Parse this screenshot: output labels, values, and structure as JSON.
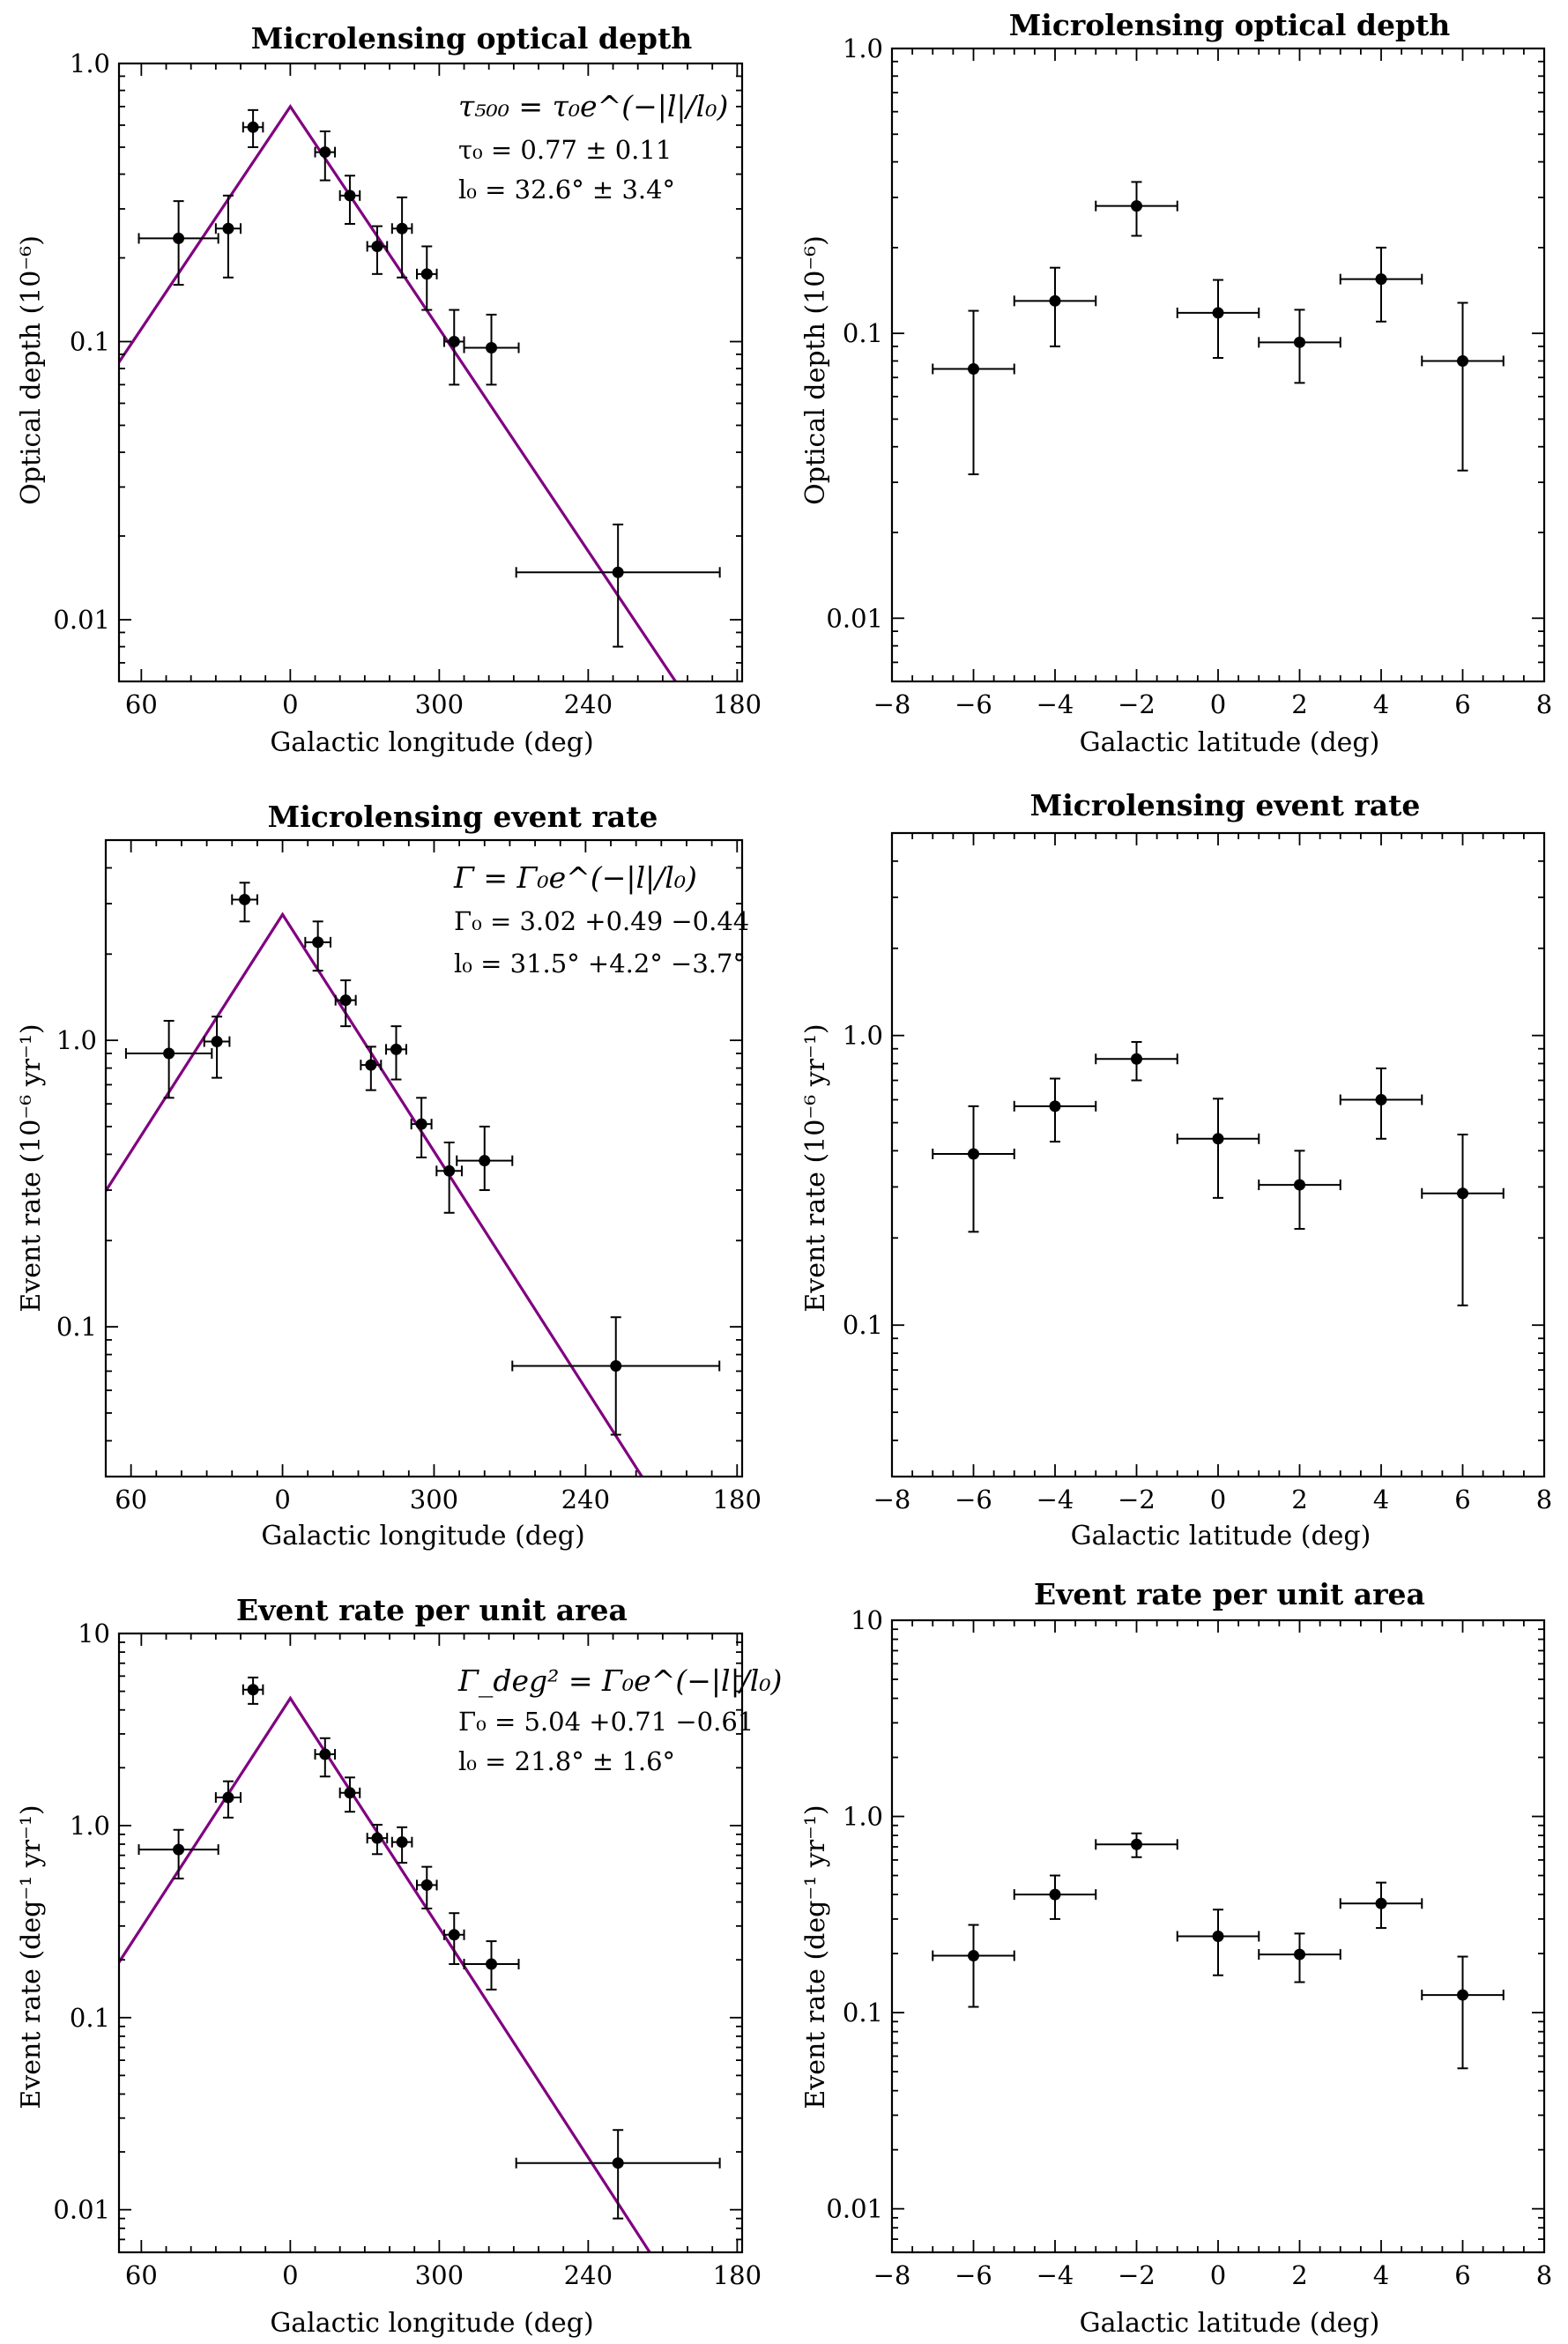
{
  "colors": {
    "fit_line": "#800080",
    "points": "#000000"
  },
  "chart_data": [
    {
      "id": "tau-lon",
      "type": "scatter",
      "title": "Microlensing optical depth",
      "xlabel": "Galactic longitude (deg)",
      "ylabel": "Optical depth (10⁻⁶)",
      "xscale": "linear",
      "yscale": "log",
      "xlim_offset_from_center_deg": [
        -69,
        182
      ],
      "ylim": [
        0.006,
        1.0
      ],
      "xtick_labels": [
        "60",
        "0",
        "300",
        "240",
        "180"
      ],
      "ytick_labels": [
        "0.01",
        "0.1",
        "1.0"
      ],
      "ytick_values": [
        0.01,
        0.1,
        1.0
      ],
      "points": [
        {
          "l_offset": -45,
          "xerr": 16,
          "y": 0.235,
          "yerr_lo": 0.075,
          "yerr_hi": 0.085
        },
        {
          "l_offset": -25,
          "xerr": 5,
          "y": 0.255,
          "yerr_lo": 0.085,
          "yerr_hi": 0.08
        },
        {
          "l_offset": -15,
          "xerr": 4,
          "y": 0.59,
          "yerr_lo": 0.09,
          "yerr_hi": 0.09
        },
        {
          "l_offset": 14,
          "xerr": 4,
          "y": 0.48,
          "yerr_lo": 0.1,
          "yerr_hi": 0.09
        },
        {
          "l_offset": 24,
          "xerr": 4,
          "y": 0.335,
          "yerr_lo": 0.07,
          "yerr_hi": 0.06
        },
        {
          "l_offset": 35,
          "xerr": 4,
          "y": 0.22,
          "yerr_lo": 0.045,
          "yerr_hi": 0.04
        },
        {
          "l_offset": 45,
          "xerr": 4,
          "y": 0.255,
          "yerr_lo": 0.085,
          "yerr_hi": 0.075
        },
        {
          "l_offset": 55,
          "xerr": 4,
          "y": 0.175,
          "yerr_lo": 0.045,
          "yerr_hi": 0.045
        },
        {
          "l_offset": 66,
          "xerr": 4,
          "y": 0.1,
          "yerr_lo": 0.03,
          "yerr_hi": 0.03
        },
        {
          "l_offset": 81,
          "xerr": 11,
          "y": 0.095,
          "yerr_lo": 0.025,
          "yerr_hi": 0.03
        },
        {
          "l_offset": 132,
          "xerr": 41,
          "y": 0.0148,
          "yerr_lo": 0.0068,
          "yerr_hi": 0.0072
        }
      ],
      "fit": {
        "peak": 0.7,
        "scale_length_deg": 32.6,
        "x_range": [
          -69,
          182
        ]
      },
      "annotation": {
        "line1": "τ₅₀₀ = τ₀e^(−|l|/l₀)",
        "line2": "τ₀ = 0.77 ± 0.11",
        "line3": "l₀ = 32.6° ± 3.4°"
      }
    },
    {
      "id": "tau-lat",
      "type": "scatter",
      "title": "Microlensing optical depth",
      "xlabel": "Galactic latitude (deg)",
      "ylabel": "Optical depth (10⁻⁶)",
      "xscale": "linear",
      "yscale": "log",
      "xlim": [
        -8,
        8
      ],
      "ylim": [
        0.006,
        1.0
      ],
      "xtick_labels": [
        "−8",
        "−6",
        "−4",
        "−2",
        "0",
        "2",
        "4",
        "6",
        "8"
      ],
      "xtick_values": [
        -8,
        -6,
        -4,
        -2,
        0,
        2,
        4,
        6,
        8
      ],
      "ytick_labels": [
        "0.01",
        "0.1",
        "1.0"
      ],
      "ytick_values": [
        0.01,
        0.1,
        1.0
      ],
      "points": [
        {
          "x": -6,
          "xerr": 1,
          "y": 0.075,
          "yerr_lo": 0.043,
          "yerr_hi": 0.045
        },
        {
          "x": -4,
          "xerr": 1,
          "y": 0.13,
          "yerr_lo": 0.04,
          "yerr_hi": 0.04
        },
        {
          "x": -2,
          "xerr": 1,
          "y": 0.28,
          "yerr_lo": 0.06,
          "yerr_hi": 0.06
        },
        {
          "x": 0,
          "xerr": 1,
          "y": 0.118,
          "yerr_lo": 0.036,
          "yerr_hi": 0.036
        },
        {
          "x": 2,
          "xerr": 1,
          "y": 0.093,
          "yerr_lo": 0.026,
          "yerr_hi": 0.028
        },
        {
          "x": 4,
          "xerr": 1,
          "y": 0.155,
          "yerr_lo": 0.045,
          "yerr_hi": 0.045
        },
        {
          "x": 6,
          "xerr": 1,
          "y": 0.08,
          "yerr_lo": 0.047,
          "yerr_hi": 0.048
        }
      ]
    },
    {
      "id": "rate-lon",
      "type": "scatter",
      "title": "Microlensing event rate",
      "xlabel": "Galactic longitude (deg)",
      "ylabel": "Event rate (10⁻⁶ yr⁻¹)",
      "xscale": "linear",
      "yscale": "log",
      "xlim_offset_from_center_deg": [
        -70,
        182
      ],
      "ylim": [
        0.03,
        5.0
      ],
      "xtick_labels": [
        "60",
        "0",
        "300",
        "240",
        "180"
      ],
      "ytick_labels": [
        "0.1",
        "1.0"
      ],
      "ytick_values": [
        0.1,
        1.0
      ],
      "points": [
        {
          "l_offset": -45,
          "xerr": 17,
          "y": 0.9,
          "yerr_lo": 0.27,
          "yerr_hi": 0.27
        },
        {
          "l_offset": -26,
          "xerr": 5,
          "y": 0.99,
          "yerr_lo": 0.25,
          "yerr_hi": 0.22
        },
        {
          "l_offset": -15,
          "xerr": 5,
          "y": 3.1,
          "yerr_lo": 0.5,
          "yerr_hi": 0.45
        },
        {
          "l_offset": 14,
          "xerr": 5,
          "y": 2.2,
          "yerr_lo": 0.45,
          "yerr_hi": 0.4
        },
        {
          "l_offset": 25,
          "xerr": 4,
          "y": 1.38,
          "yerr_lo": 0.26,
          "yerr_hi": 0.24
        },
        {
          "l_offset": 35,
          "xerr": 4,
          "y": 0.82,
          "yerr_lo": 0.15,
          "yerr_hi": 0.13
        },
        {
          "l_offset": 45,
          "xerr": 4,
          "y": 0.93,
          "yerr_lo": 0.2,
          "yerr_hi": 0.19
        },
        {
          "l_offset": 55,
          "xerr": 4,
          "y": 0.51,
          "yerr_lo": 0.12,
          "yerr_hi": 0.12
        },
        {
          "l_offset": 66,
          "xerr": 5,
          "y": 0.35,
          "yerr_lo": 0.1,
          "yerr_hi": 0.09
        },
        {
          "l_offset": 80,
          "xerr": 11,
          "y": 0.38,
          "yerr_lo": 0.08,
          "yerr_hi": 0.12
        },
        {
          "l_offset": 132,
          "xerr": 41,
          "y": 0.073,
          "yerr_lo": 0.031,
          "yerr_hi": 0.035
        }
      ],
      "fit": {
        "peak": 2.75,
        "scale_length_deg": 31.5,
        "x_range": [
          -70,
          182
        ]
      },
      "annotation": {
        "line1": "Γ = Γ₀e^(−|l|/l₀)",
        "line2": "Γ₀ = 3.02 +0.49 −0.44",
        "line3": "l₀ = 31.5° +4.2° −3.7°"
      }
    },
    {
      "id": "rate-lat",
      "type": "scatter",
      "title": "Microlensing event rate",
      "xlabel": "Galactic latitude (deg)",
      "ylabel": "Event rate (10⁻⁶ yr⁻¹)",
      "xscale": "linear",
      "yscale": "log",
      "xlim": [
        -8,
        8
      ],
      "ylim": [
        0.03,
        5.0
      ],
      "xtick_labels": [
        "−8",
        "−6",
        "−4",
        "−2",
        "0",
        "2",
        "4",
        "6",
        "8"
      ],
      "xtick_values": [
        -8,
        -6,
        -4,
        -2,
        0,
        2,
        4,
        6,
        8
      ],
      "ytick_labels": [
        "0.1",
        "1.0"
      ],
      "ytick_values": [
        0.1,
        1.0
      ],
      "points": [
        {
          "x": -6,
          "xerr": 1,
          "y": 0.39,
          "yerr_lo": 0.18,
          "yerr_hi": 0.18
        },
        {
          "x": -4,
          "xerr": 1,
          "y": 0.57,
          "yerr_lo": 0.14,
          "yerr_hi": 0.14
        },
        {
          "x": -2,
          "xerr": 1,
          "y": 0.83,
          "yerr_lo": 0.13,
          "yerr_hi": 0.12
        },
        {
          "x": 0,
          "xerr": 1,
          "y": 0.44,
          "yerr_lo": 0.165,
          "yerr_hi": 0.165
        },
        {
          "x": 2,
          "xerr": 1,
          "y": 0.305,
          "yerr_lo": 0.09,
          "yerr_hi": 0.095
        },
        {
          "x": 4,
          "xerr": 1,
          "y": 0.6,
          "yerr_lo": 0.16,
          "yerr_hi": 0.17
        },
        {
          "x": 6,
          "xerr": 1,
          "y": 0.285,
          "yerr_lo": 0.168,
          "yerr_hi": 0.17
        }
      ]
    },
    {
      "id": "area-lon",
      "type": "scatter",
      "title": "Event rate per unit area",
      "xlabel": "Galactic longitude (deg)",
      "ylabel": "Event rate (deg⁻¹ yr⁻¹)",
      "xscale": "linear",
      "yscale": "log",
      "xlim_offset_from_center_deg": [
        -69,
        182
      ],
      "ylim": [
        0.006,
        10.0
      ],
      "xtick_labels": [
        "60",
        "0",
        "300",
        "240",
        "180"
      ],
      "ytick_labels": [
        "0.01",
        "0.1",
        "1.0",
        "10"
      ],
      "ytick_values": [
        0.01,
        0.1,
        1.0,
        10.0
      ],
      "points": [
        {
          "l_offset": -45,
          "xerr": 16,
          "y": 0.75,
          "yerr_lo": 0.22,
          "yerr_hi": 0.2
        },
        {
          "l_offset": -25,
          "xerr": 5,
          "y": 1.4,
          "yerr_lo": 0.3,
          "yerr_hi": 0.3
        },
        {
          "l_offset": -15,
          "xerr": 4,
          "y": 5.1,
          "yerr_lo": 0.8,
          "yerr_hi": 0.8
        },
        {
          "l_offset": 14,
          "xerr": 4,
          "y": 2.35,
          "yerr_lo": 0.55,
          "yerr_hi": 0.5
        },
        {
          "l_offset": 24,
          "xerr": 4,
          "y": 1.48,
          "yerr_lo": 0.3,
          "yerr_hi": 0.3
        },
        {
          "l_offset": 35,
          "xerr": 4,
          "y": 0.86,
          "yerr_lo": 0.15,
          "yerr_hi": 0.15
        },
        {
          "l_offset": 45,
          "xerr": 4,
          "y": 0.82,
          "yerr_lo": 0.18,
          "yerr_hi": 0.16
        },
        {
          "l_offset": 55,
          "xerr": 4,
          "y": 0.49,
          "yerr_lo": 0.12,
          "yerr_hi": 0.12
        },
        {
          "l_offset": 66,
          "xerr": 4,
          "y": 0.27,
          "yerr_lo": 0.08,
          "yerr_hi": 0.08
        },
        {
          "l_offset": 81,
          "xerr": 11,
          "y": 0.19,
          "yerr_lo": 0.05,
          "yerr_hi": 0.06
        },
        {
          "l_offset": 132,
          "xerr": 41,
          "y": 0.0175,
          "yerr_lo": 0.0085,
          "yerr_hi": 0.0085
        }
      ],
      "fit": {
        "peak": 4.6,
        "scale_length_deg": 21.8,
        "x_range": [
          -69,
          182
        ]
      },
      "annotation": {
        "line1": "Γ_deg² = Γ₀e^(−|l|/l₀)",
        "line2": "Γ₀ = 5.04 +0.71 −0.61",
        "line3": "l₀ = 21.8° ± 1.6°"
      }
    },
    {
      "id": "area-lat",
      "type": "scatter",
      "title": "Event rate per unit area",
      "xlabel": "Galactic latitude (deg)",
      "ylabel": "Event rate (deg⁻¹ yr⁻¹)",
      "xscale": "linear",
      "yscale": "log",
      "xlim": [
        -8,
        8
      ],
      "ylim": [
        0.006,
        10.0
      ],
      "xtick_labels": [
        "−8",
        "−6",
        "−4",
        "−2",
        "0",
        "2",
        "4",
        "6",
        "8"
      ],
      "xtick_values": [
        -8,
        -6,
        -4,
        -2,
        0,
        2,
        4,
        6,
        8
      ],
      "ytick_labels": [
        "0.01",
        "0.1",
        "1.0",
        "10"
      ],
      "ytick_values": [
        0.01,
        0.1,
        1.0,
        10.0
      ],
      "points": [
        {
          "x": -6,
          "xerr": 1,
          "y": 0.195,
          "yerr_lo": 0.088,
          "yerr_hi": 0.085
        },
        {
          "x": -4,
          "xerr": 1,
          "y": 0.4,
          "yerr_lo": 0.1,
          "yerr_hi": 0.1
        },
        {
          "x": -2,
          "xerr": 1,
          "y": 0.72,
          "yerr_lo": 0.1,
          "yerr_hi": 0.1
        },
        {
          "x": 0,
          "xerr": 1,
          "y": 0.245,
          "yerr_lo": 0.09,
          "yerr_hi": 0.09
        },
        {
          "x": 2,
          "xerr": 1,
          "y": 0.198,
          "yerr_lo": 0.055,
          "yerr_hi": 0.055
        },
        {
          "x": 4,
          "xerr": 1,
          "y": 0.36,
          "yerr_lo": 0.09,
          "yerr_hi": 0.1
        },
        {
          "x": 6,
          "xerr": 1,
          "y": 0.123,
          "yerr_lo": 0.071,
          "yerr_hi": 0.07
        }
      ]
    }
  ]
}
